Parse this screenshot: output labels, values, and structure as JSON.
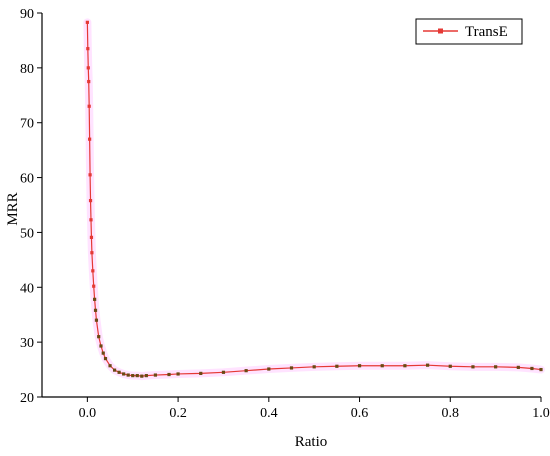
{
  "chart_data": {
    "type": "line",
    "title": "",
    "xlabel": "Ratio",
    "ylabel": "MRR",
    "xlim": [
      -0.1,
      1.0
    ],
    "ylim": [
      20,
      90
    ],
    "xticks": [
      0.0,
      0.2,
      0.4,
      0.6,
      0.8,
      1.0
    ],
    "xtick_labels": [
      "0.0",
      "0.2",
      "0.4",
      "0.6",
      "0.8",
      "1.0"
    ],
    "yticks": [
      20,
      30,
      40,
      50,
      60,
      70,
      80,
      90
    ],
    "ytick_labels": [
      "20",
      "30",
      "40",
      "50",
      "60",
      "70",
      "80",
      "90"
    ],
    "grid": false,
    "legend": {
      "position": "top-right",
      "entries": [
        "TransE"
      ]
    },
    "series": [
      {
        "name": "TransE",
        "color": "#e53935",
        "marker_color": "#e53935",
        "dark_marker_color": "#6b4a14",
        "glow_color": "#ff66ff",
        "x": [
          0.0,
          0.001,
          0.002,
          0.003,
          0.004,
          0.005,
          0.006,
          0.007,
          0.008,
          0.009,
          0.01,
          0.012,
          0.014,
          0.016,
          0.018,
          0.02,
          0.025,
          0.03,
          0.035,
          0.04,
          0.05,
          0.06,
          0.07,
          0.08,
          0.09,
          0.1,
          0.11,
          0.12,
          0.13,
          0.15,
          0.18,
          0.2,
          0.25,
          0.3,
          0.35,
          0.4,
          0.45,
          0.5,
          0.55,
          0.6,
          0.65,
          0.7,
          0.75,
          0.8,
          0.85,
          0.9,
          0.95,
          0.98,
          1.0
        ],
        "y": [
          88.3,
          83.5,
          80.0,
          77.5,
          73.0,
          67.0,
          60.5,
          55.8,
          52.3,
          49.1,
          46.3,
          43.0,
          40.2,
          37.8,
          35.8,
          34.0,
          31.0,
          29.3,
          28.0,
          27.0,
          25.7,
          24.9,
          24.5,
          24.2,
          24.0,
          23.9,
          23.9,
          23.8,
          23.9,
          24.0,
          24.1,
          24.2,
          24.3,
          24.5,
          24.8,
          25.1,
          25.3,
          25.5,
          25.6,
          25.7,
          25.7,
          25.7,
          25.8,
          25.6,
          25.5,
          25.5,
          25.4,
          25.2,
          25.0
        ]
      }
    ]
  }
}
